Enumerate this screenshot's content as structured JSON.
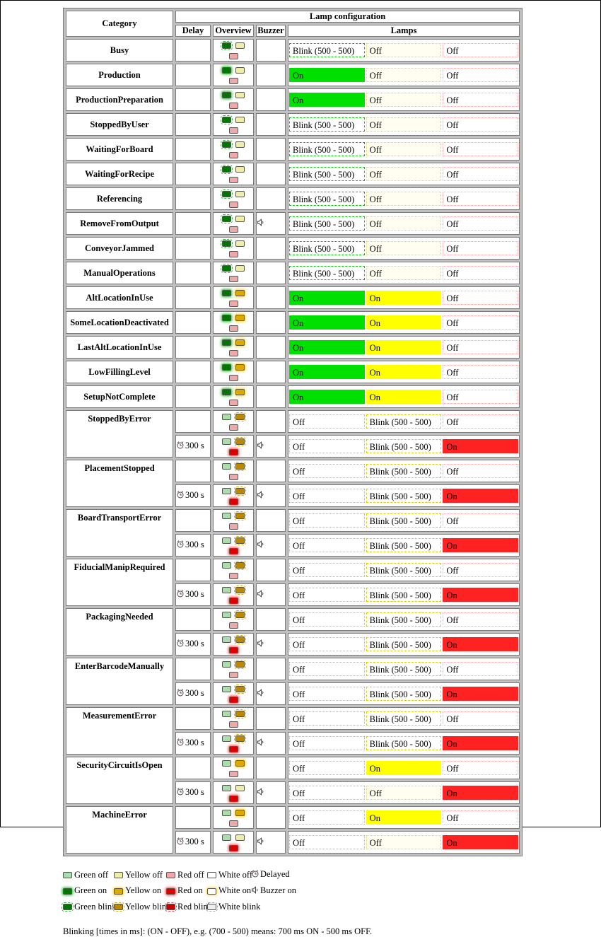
{
  "header": {
    "title": "Lamp configuration",
    "category": "Category",
    "delay": "Delay",
    "overview": "Overview",
    "buzzer": "Buzzer",
    "lamps": "Lamps"
  },
  "lamp_colors_order": [
    "green",
    "yellow",
    "red"
  ],
  "colors": {
    "green_on": "#00e000",
    "yellow_on": "#ffff00",
    "red_on": "#ff2222",
    "grid": "#7a7a7a"
  },
  "groups": [
    {
      "name": "Busy",
      "rows": [
        {
          "delay": "",
          "buzzer": false,
          "overview": [
            "blink",
            "off",
            "off"
          ],
          "lamps": [
            [
              "blink",
              "Blink (500 - 500)"
            ],
            [
              "off",
              "Off"
            ],
            [
              "off",
              "Off"
            ]
          ]
        }
      ]
    },
    {
      "name": "Production",
      "rows": [
        {
          "delay": "",
          "buzzer": false,
          "overview": [
            "on",
            "off",
            "off"
          ],
          "lamps": [
            [
              "on",
              "On"
            ],
            [
              "off",
              "Off"
            ],
            [
              "off",
              "Off"
            ]
          ]
        }
      ]
    },
    {
      "name": "ProductionPreparation",
      "rows": [
        {
          "delay": "",
          "buzzer": false,
          "overview": [
            "on",
            "off",
            "off"
          ],
          "lamps": [
            [
              "on",
              "On"
            ],
            [
              "off",
              "Off"
            ],
            [
              "off",
              "Off"
            ]
          ]
        }
      ]
    },
    {
      "name": "StoppedByUser",
      "rows": [
        {
          "delay": "",
          "buzzer": false,
          "overview": [
            "blink",
            "off",
            "off"
          ],
          "lamps": [
            [
              "blink",
              "Blink (500 - 500)"
            ],
            [
              "off",
              "Off"
            ],
            [
              "off",
              "Off"
            ]
          ]
        }
      ]
    },
    {
      "name": "WaitingForBoard",
      "rows": [
        {
          "delay": "",
          "buzzer": false,
          "overview": [
            "blink",
            "off",
            "off"
          ],
          "lamps": [
            [
              "blink",
              "Blink (500 - 500)"
            ],
            [
              "off",
              "Off"
            ],
            [
              "off",
              "Off"
            ]
          ]
        }
      ]
    },
    {
      "name": "WaitingForRecipe",
      "rows": [
        {
          "delay": "",
          "buzzer": false,
          "overview": [
            "blink",
            "off",
            "off"
          ],
          "lamps": [
            [
              "blink",
              "Blink (500 - 500)"
            ],
            [
              "off",
              "Off"
            ],
            [
              "off",
              "Off"
            ]
          ]
        }
      ]
    },
    {
      "name": "Referencing",
      "rows": [
        {
          "delay": "",
          "buzzer": false,
          "overview": [
            "blink",
            "off",
            "off"
          ],
          "lamps": [
            [
              "blink",
              "Blink (500 - 500)"
            ],
            [
              "off",
              "Off"
            ],
            [
              "off",
              "Off"
            ]
          ]
        }
      ]
    },
    {
      "name": "RemoveFromOutput",
      "rows": [
        {
          "delay": "",
          "buzzer": true,
          "overview": [
            "blink",
            "off",
            "off"
          ],
          "lamps": [
            [
              "blink",
              "Blink (500 - 500)"
            ],
            [
              "off",
              "Off"
            ],
            [
              "off",
              "Off"
            ]
          ]
        }
      ]
    },
    {
      "name": "ConveyorJammed",
      "rows": [
        {
          "delay": "",
          "buzzer": false,
          "overview": [
            "blink",
            "off",
            "off"
          ],
          "lamps": [
            [
              "blink",
              "Blink (500 - 500)"
            ],
            [
              "off",
              "Off"
            ],
            [
              "off",
              "Off"
            ]
          ]
        }
      ]
    },
    {
      "name": "ManualOperations",
      "rows": [
        {
          "delay": "",
          "buzzer": false,
          "overview": [
            "blink",
            "off",
            "off"
          ],
          "lamps": [
            [
              "blink",
              "Blink (500 - 500)"
            ],
            [
              "off",
              "Off"
            ],
            [
              "off",
              "Off"
            ]
          ]
        }
      ]
    },
    {
      "name": "AltLocationInUse",
      "rows": [
        {
          "delay": "",
          "buzzer": false,
          "overview": [
            "on",
            "on",
            "off"
          ],
          "lamps": [
            [
              "on",
              "On"
            ],
            [
              "on",
              "On"
            ],
            [
              "off",
              "Off"
            ]
          ]
        }
      ]
    },
    {
      "name": "SomeLocationDeactivated",
      "rows": [
        {
          "delay": "",
          "buzzer": false,
          "overview": [
            "on",
            "on",
            "off"
          ],
          "lamps": [
            [
              "on",
              "On"
            ],
            [
              "on",
              "On"
            ],
            [
              "off",
              "Off"
            ]
          ]
        }
      ]
    },
    {
      "name": "LastAltLocationInUse",
      "rows": [
        {
          "delay": "",
          "buzzer": false,
          "overview": [
            "on",
            "on",
            "off"
          ],
          "lamps": [
            [
              "on",
              "On"
            ],
            [
              "on",
              "On"
            ],
            [
              "off",
              "Off"
            ]
          ]
        }
      ]
    },
    {
      "name": "LowFillingLevel",
      "rows": [
        {
          "delay": "",
          "buzzer": false,
          "overview": [
            "on",
            "on",
            "off"
          ],
          "lamps": [
            [
              "on",
              "On"
            ],
            [
              "on",
              "On"
            ],
            [
              "off",
              "Off"
            ]
          ]
        }
      ]
    },
    {
      "name": "SetupNotComplete",
      "rows": [
        {
          "delay": "",
          "buzzer": false,
          "overview": [
            "on",
            "on",
            "off"
          ],
          "lamps": [
            [
              "on",
              "On"
            ],
            [
              "on",
              "On"
            ],
            [
              "off",
              "Off"
            ]
          ]
        }
      ]
    },
    {
      "name": "StoppedByError",
      "rows": [
        {
          "delay": "",
          "buzzer": false,
          "overview": [
            "off",
            "blink",
            "off"
          ],
          "lamps": [
            [
              "off",
              "Off"
            ],
            [
              "blink",
              "Blink (500 - 500)"
            ],
            [
              "off",
              "Off"
            ]
          ]
        },
        {
          "delay": "300 s",
          "buzzer": true,
          "overview": [
            "off",
            "blink",
            "on"
          ],
          "lamps": [
            [
              "off",
              "Off"
            ],
            [
              "blink",
              "Blink (500 - 500)"
            ],
            [
              "on",
              "On"
            ]
          ]
        }
      ]
    },
    {
      "name": "PlacementStopped",
      "rows": [
        {
          "delay": "",
          "buzzer": false,
          "overview": [
            "off",
            "blink",
            "off"
          ],
          "lamps": [
            [
              "off",
              "Off"
            ],
            [
              "blink",
              "Blink (500 - 500)"
            ],
            [
              "off",
              "Off"
            ]
          ]
        },
        {
          "delay": "300 s",
          "buzzer": true,
          "overview": [
            "off",
            "blink",
            "on"
          ],
          "lamps": [
            [
              "off",
              "Off"
            ],
            [
              "blink",
              "Blink (500 - 500)"
            ],
            [
              "on",
              "On"
            ]
          ]
        }
      ]
    },
    {
      "name": "BoardTransportError",
      "rows": [
        {
          "delay": "",
          "buzzer": false,
          "overview": [
            "off",
            "blink",
            "off"
          ],
          "lamps": [
            [
              "off",
              "Off"
            ],
            [
              "blink",
              "Blink (500 - 500)"
            ],
            [
              "off",
              "Off"
            ]
          ]
        },
        {
          "delay": "300 s",
          "buzzer": true,
          "overview": [
            "off",
            "blink",
            "on"
          ],
          "lamps": [
            [
              "off",
              "Off"
            ],
            [
              "blink",
              "Blink (500 - 500)"
            ],
            [
              "on",
              "On"
            ]
          ]
        }
      ]
    },
    {
      "name": "FiducialManipRequired",
      "rows": [
        {
          "delay": "",
          "buzzer": false,
          "overview": [
            "off",
            "blink",
            "off"
          ],
          "lamps": [
            [
              "off",
              "Off"
            ],
            [
              "blink",
              "Blink (500 - 500)"
            ],
            [
              "off",
              "Off"
            ]
          ]
        },
        {
          "delay": "300 s",
          "buzzer": true,
          "overview": [
            "off",
            "blink",
            "on"
          ],
          "lamps": [
            [
              "off",
              "Off"
            ],
            [
              "blink",
              "Blink (500 - 500)"
            ],
            [
              "on",
              "On"
            ]
          ]
        }
      ]
    },
    {
      "name": "PackagingNeeded",
      "rows": [
        {
          "delay": "",
          "buzzer": false,
          "overview": [
            "off",
            "blink",
            "off"
          ],
          "lamps": [
            [
              "off",
              "Off"
            ],
            [
              "blink",
              "Blink (500 - 500)"
            ],
            [
              "off",
              "Off"
            ]
          ]
        },
        {
          "delay": "300 s",
          "buzzer": true,
          "overview": [
            "off",
            "blink",
            "on"
          ],
          "lamps": [
            [
              "off",
              "Off"
            ],
            [
              "blink",
              "Blink (500 - 500)"
            ],
            [
              "on",
              "On"
            ]
          ]
        }
      ]
    },
    {
      "name": "EnterBarcodeManually",
      "rows": [
        {
          "delay": "",
          "buzzer": false,
          "overview": [
            "off",
            "blink",
            "off"
          ],
          "lamps": [
            [
              "off",
              "Off"
            ],
            [
              "blink",
              "Blink (500 - 500)"
            ],
            [
              "off",
              "Off"
            ]
          ]
        },
        {
          "delay": "300 s",
          "buzzer": true,
          "overview": [
            "off",
            "blink",
            "on"
          ],
          "lamps": [
            [
              "off",
              "Off"
            ],
            [
              "blink",
              "Blink (500 - 500)"
            ],
            [
              "on",
              "On"
            ]
          ]
        }
      ]
    },
    {
      "name": "MeasurementError",
      "rows": [
        {
          "delay": "",
          "buzzer": false,
          "overview": [
            "off",
            "blink",
            "off"
          ],
          "lamps": [
            [
              "off",
              "Off"
            ],
            [
              "blink",
              "Blink (500 - 500)"
            ],
            [
              "off",
              "Off"
            ]
          ]
        },
        {
          "delay": "300 s",
          "buzzer": true,
          "overview": [
            "off",
            "blink",
            "on"
          ],
          "lamps": [
            [
              "off",
              "Off"
            ],
            [
              "blink",
              "Blink (500 - 500)"
            ],
            [
              "on",
              "On"
            ]
          ]
        }
      ]
    },
    {
      "name": "SecurityCircuitIsOpen",
      "rows": [
        {
          "delay": "",
          "buzzer": false,
          "overview": [
            "off",
            "on",
            "off"
          ],
          "lamps": [
            [
              "off",
              "Off"
            ],
            [
              "on",
              "On"
            ],
            [
              "off",
              "Off"
            ]
          ]
        },
        {
          "delay": "300 s",
          "buzzer": true,
          "overview": [
            "off",
            "off",
            "on"
          ],
          "lamps": [
            [
              "off",
              "Off"
            ],
            [
              "off",
              "Off"
            ],
            [
              "on",
              "On"
            ]
          ]
        }
      ]
    },
    {
      "name": "MachineError",
      "rows": [
        {
          "delay": "",
          "buzzer": false,
          "overview": [
            "off",
            "on",
            "off"
          ],
          "lamps": [
            [
              "off",
              "Off"
            ],
            [
              "on",
              "On"
            ],
            [
              "off",
              "Off"
            ]
          ]
        },
        {
          "delay": "300 s",
          "buzzer": true,
          "overview": [
            "off",
            "off",
            "on"
          ],
          "lamps": [
            [
              "off",
              "Off"
            ],
            [
              "off",
              "Off"
            ],
            [
              "on",
              "On"
            ]
          ]
        }
      ]
    }
  ],
  "legend": {
    "rows": [
      [
        [
          "green-off",
          "Green off"
        ],
        [
          "yellow-off",
          "Yellow off"
        ],
        [
          "red-off",
          "Red off"
        ],
        [
          "white-off",
          "White off"
        ],
        [
          "delayed",
          "Delayed"
        ]
      ],
      [
        [
          "green-on",
          "Green on"
        ],
        [
          "yellow-on",
          "Yellow on"
        ],
        [
          "red-on",
          "Red on"
        ],
        [
          "white-on",
          "White on"
        ],
        [
          "buzzer",
          "Buzzer on"
        ]
      ],
      [
        [
          "green-blink",
          "Green blink"
        ],
        [
          "yellow-blink",
          "Yellow blink"
        ],
        [
          "red-blink",
          "Red blink"
        ],
        [
          "white-blink",
          "White blink"
        ]
      ]
    ]
  },
  "note": "Blinking [times in ms]: (ON - OFF), e.g. (700 - 500) means: 700 ms ON - 500 ms OFF."
}
